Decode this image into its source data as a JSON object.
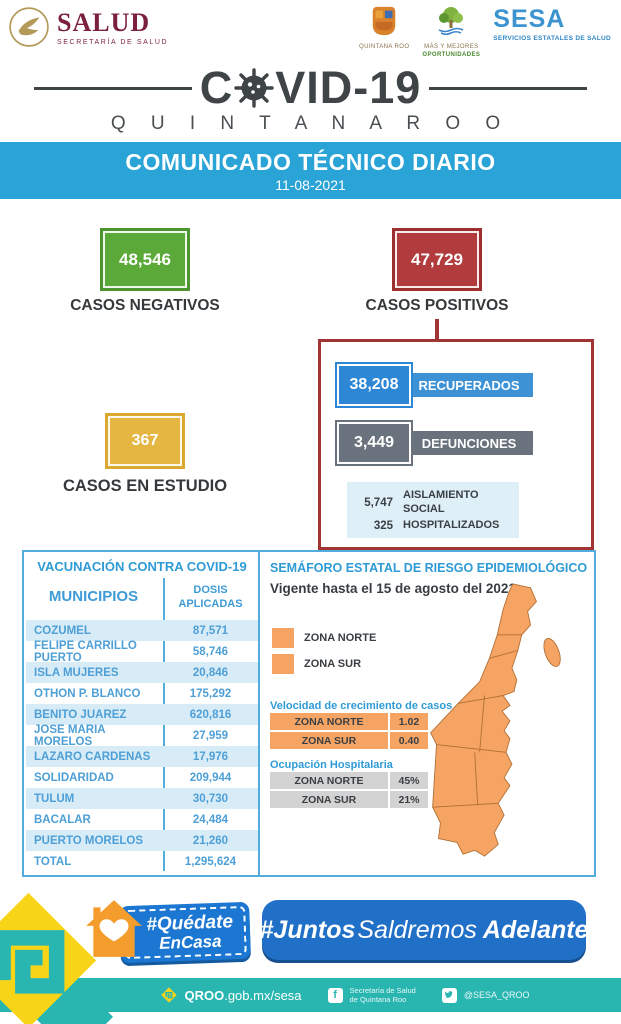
{
  "header": {
    "salud": {
      "title": "SALUD",
      "subtitle": "SECRETARÍA DE SALUD"
    },
    "qroo_crest": {
      "label": "QUINTANA ROO"
    },
    "oportunidades": {
      "line1": "MÁS Y MEJORES",
      "line2": "OPORTUNIDADES"
    },
    "sesa": {
      "title": "SESA",
      "subtitle": "SERVICIOS ESTATALES DE SALUD"
    }
  },
  "title": {
    "pre": "C",
    "post": "VID-19",
    "state": "Q U I N T A N A   R O O"
  },
  "banner": {
    "title": "COMUNICADO TÉCNICO DIARIO",
    "date": "11-08-2021"
  },
  "stats": {
    "negativos": {
      "value": "48,546",
      "label": "CASOS NEGATIVOS",
      "color": "#5BA939"
    },
    "positivos": {
      "value": "47,729",
      "label": "CASOS POSITIVOS",
      "color": "#B13B3D"
    },
    "estudio": {
      "value": "367",
      "label": "CASOS EN ESTUDIO",
      "color": "#E6B642"
    },
    "recuperados": {
      "value": "38,208",
      "label": "RECUPERADOS",
      "color": "#2E87D5"
    },
    "defunciones": {
      "value": "3,449",
      "label": "DEFUNCIONES",
      "color": "#6A737D"
    },
    "aislamiento": {
      "value": "5,747",
      "label": "AISLAMIENTO SOCIAL"
    },
    "hospitalizados": {
      "value": "325",
      "label": "HOSPITALIZADOS"
    }
  },
  "vaccination": {
    "title": "VACUNACIÓN CONTRA COVID-19",
    "columns": {
      "municipios": "MUNICIPIOS",
      "dosis": "DOSIS APLICADAS"
    },
    "rows": [
      {
        "municipio": "COZUMEL",
        "dosis": "87,571"
      },
      {
        "municipio": "FELIPE CARRILLO PUERTO",
        "dosis": "58,746"
      },
      {
        "municipio": "ISLA MUJERES",
        "dosis": "20,846"
      },
      {
        "municipio": "OTHON P. BLANCO",
        "dosis": "175,292"
      },
      {
        "municipio": "BENITO JUAREZ",
        "dosis": "620,816"
      },
      {
        "municipio": "JOSE MARIA MORELOS",
        "dosis": "27,959"
      },
      {
        "municipio": "LAZARO CARDENAS",
        "dosis": "17,976"
      },
      {
        "municipio": "SOLIDARIDAD",
        "dosis": "209,944"
      },
      {
        "municipio": "TULUM",
        "dosis": "30,730"
      },
      {
        "municipio": "BACALAR",
        "dosis": "24,484"
      },
      {
        "municipio": "PUERTO MORELOS",
        "dosis": "21,260"
      },
      {
        "municipio": "TOTAL",
        "dosis": "1,295,624"
      }
    ]
  },
  "semaforo": {
    "title": "SEMÁFORO ESTATAL DE RIESGO EPIDEMIOLÓGICO",
    "valid_until": "Vigente hasta el 15 de agosto del 2021",
    "zone_color": "#F5A464",
    "legend": [
      {
        "label": "ZONA NORTE"
      },
      {
        "label": "ZONA SUR"
      }
    ],
    "growth": {
      "title": "Velocidad de crecimiento de casos",
      "rows": [
        {
          "zone": "ZONA NORTE",
          "value": "1.02"
        },
        {
          "zone": "ZONA SUR",
          "value": "0.40"
        }
      ]
    },
    "occupancy": {
      "title": "Ocupación Hospitalaria",
      "rows": [
        {
          "zone": "ZONA NORTE",
          "value": "45%"
        },
        {
          "zone": "ZONA SUR",
          "value": "21%"
        }
      ]
    }
  },
  "campaign": {
    "quedate": {
      "line1": "#Quédate",
      "line2": "EnCasa"
    },
    "juntos": {
      "part1": "#Juntos",
      "part2": "Saldremos",
      "part3": "Adelante"
    }
  },
  "footer": {
    "site_bold": "QROO",
    "site_rest": ".gob.mx/sesa",
    "facebook_line1": "Secretaría de Salud",
    "facebook_line2": "de Quintana Roo",
    "twitter": "@SESA_QROO"
  },
  "icons": {
    "virus": "coronavirus-icon",
    "eagle_seal": "eagle-seal-icon",
    "house_heart": "house-heart-icon",
    "facebook": "facebook-icon",
    "twitter": "twitter-icon",
    "qroo_glyph": "qroo-diamond-logo"
  }
}
